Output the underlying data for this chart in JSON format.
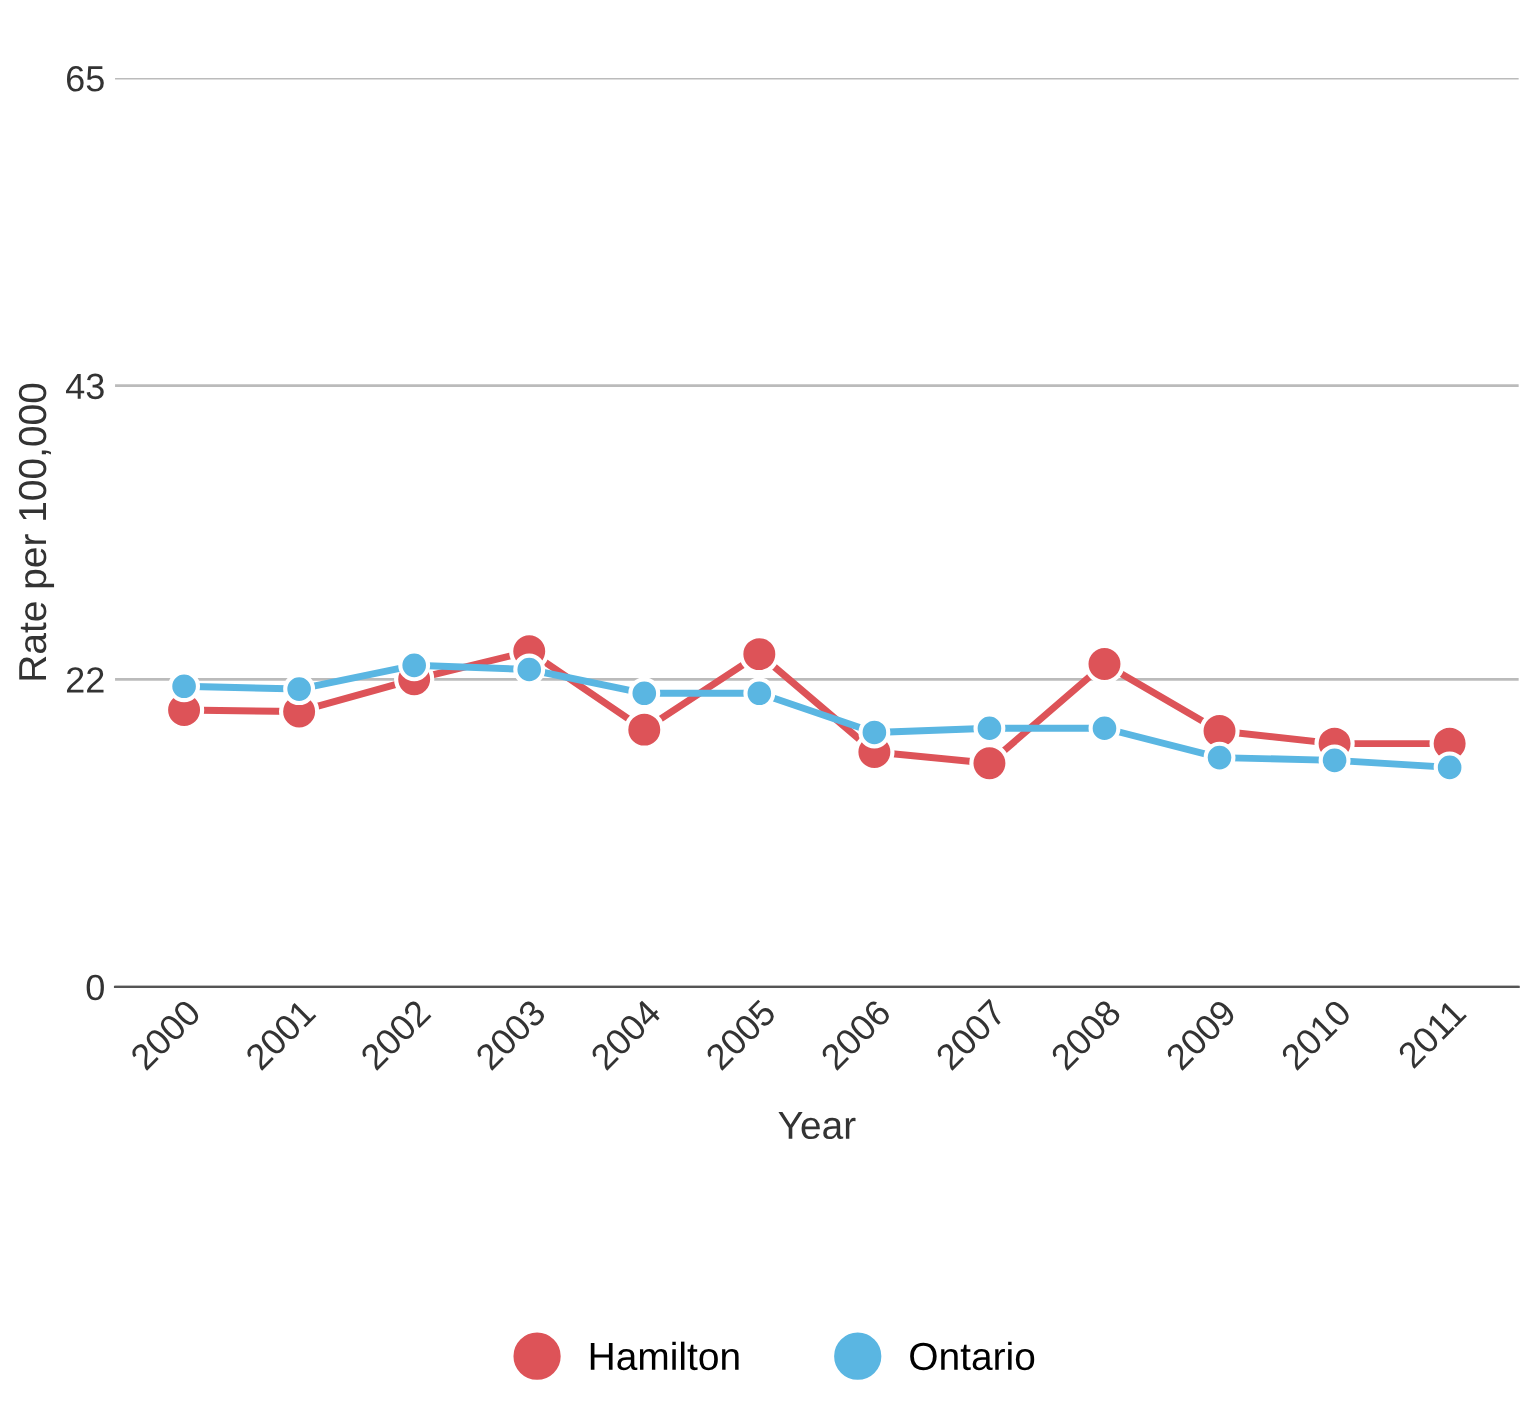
{
  "chart_data": {
    "type": "line",
    "xlabel": "Year",
    "ylabel": "Rate per 100,000",
    "categories": [
      "2000",
      "2001",
      "2002",
      "2003",
      "2004",
      "2005",
      "2006",
      "2007",
      "2008",
      "2009",
      "2010",
      "2011"
    ],
    "series": [
      {
        "name": "Hamilton",
        "color": "#dd5358",
        "values": [
          19.8,
          19.7,
          22.0,
          24.0,
          18.4,
          23.8,
          16.8,
          16.0,
          23.1,
          18.3,
          17.4,
          17.4
        ]
      },
      {
        "name": "Ontario",
        "color": "#5ab6e2",
        "values": [
          21.5,
          21.3,
          23.0,
          22.7,
          21.0,
          21.0,
          18.2,
          18.5,
          18.5,
          16.4,
          16.2,
          15.7
        ]
      }
    ],
    "ylim": [
      0,
      65
    ],
    "yticks": [
      0,
      22,
      43,
      65
    ],
    "grid": "y",
    "legend": "bottom",
    "marker": "circle",
    "line_style": "solid"
  }
}
